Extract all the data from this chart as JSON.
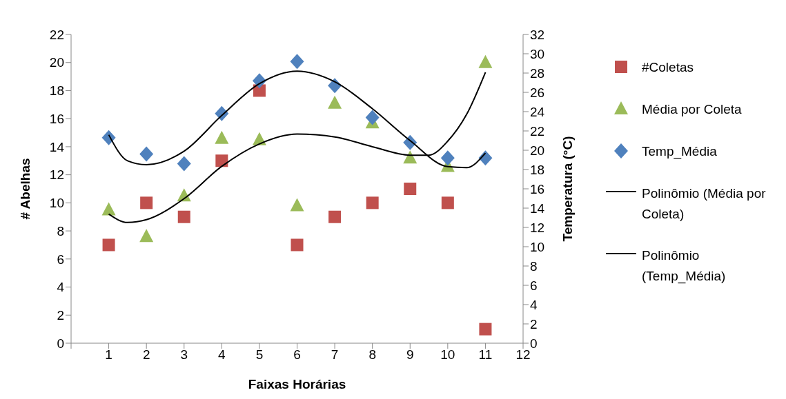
{
  "chart_data": {
    "type": "scatter",
    "xlabel": "Faixas Horárias",
    "ylabel": "# Abelhas",
    "y2label": "Temperatura (°C)",
    "xlim": [
      0,
      12
    ],
    "xticks": [
      {
        "value": 0,
        "label": null
      },
      1,
      2,
      3,
      4,
      5,
      6,
      7,
      8,
      9,
      10,
      11,
      12
    ],
    "ylim": [
      0,
      22
    ],
    "yticks": [
      0,
      2,
      4,
      6,
      8,
      10,
      12,
      14,
      16,
      18,
      20,
      22
    ],
    "y2lim": [
      0,
      32
    ],
    "y2ticks": [
      0,
      2,
      4,
      6,
      8,
      10,
      12,
      14,
      16,
      18,
      20,
      22,
      24,
      26,
      28,
      30,
      32
    ],
    "legend": "right",
    "grid": false,
    "series": [
      {
        "name": "#Coletas",
        "marker": "square",
        "color": "#c0504d",
        "x": [
          1,
          2,
          3,
          4,
          5,
          6,
          7,
          8,
          9,
          10,
          11
        ],
        "values": [
          7,
          10,
          9,
          13,
          18,
          7,
          9,
          10,
          11,
          10,
          1
        ]
      },
      {
        "name": "Média por Coleta",
        "marker": "triangle",
        "color": "#9bbb59",
        "x": [
          1,
          2,
          3,
          4,
          5,
          6,
          7,
          8,
          9,
          10,
          11
        ],
        "values": [
          9.5,
          7.6,
          10.5,
          14.6,
          14.5,
          9.8,
          17.1,
          15.7,
          13.2,
          12.6,
          20.0
        ]
      },
      {
        "name": "Temp_Média",
        "marker": "diamond",
        "axis": "y2",
        "color": "#4f81bd",
        "x": [
          1,
          2,
          3,
          4,
          5,
          6,
          7,
          8,
          9,
          10,
          11
        ],
        "values": [
          21.3,
          19.6,
          18.6,
          23.8,
          27.2,
          29.2,
          26.7,
          23.4,
          20.8,
          19.2,
          19.2
        ]
      },
      {
        "name": "Polinômio (Média por Coleta)",
        "type": "line",
        "marker": "none",
        "line_style": "solid",
        "color": "#000000",
        "x": [
          1,
          1.5,
          2,
          3,
          4,
          5,
          6,
          7,
          8,
          9,
          9.5,
          10,
          10.5,
          11
        ],
        "values": [
          9.2,
          8.6,
          8.8,
          10.3,
          12.6,
          14.2,
          14.9,
          14.7,
          14.0,
          13.4,
          13.4,
          14.4,
          16.3,
          19.3
        ]
      },
      {
        "name": "Polinômio (Temp_Média)",
        "type": "line",
        "marker": "none",
        "line_style": "solid",
        "axis": "y2",
        "color": "#000000",
        "x": [
          1,
          1.5,
          2,
          3,
          4,
          5,
          6,
          7,
          8,
          9,
          10,
          10.5,
          11
        ],
        "values": [
          21.6,
          18.9,
          18.5,
          19.9,
          23.6,
          26.9,
          28.2,
          27.1,
          24.3,
          21.0,
          18.3,
          18.2,
          19.7
        ]
      }
    ]
  }
}
